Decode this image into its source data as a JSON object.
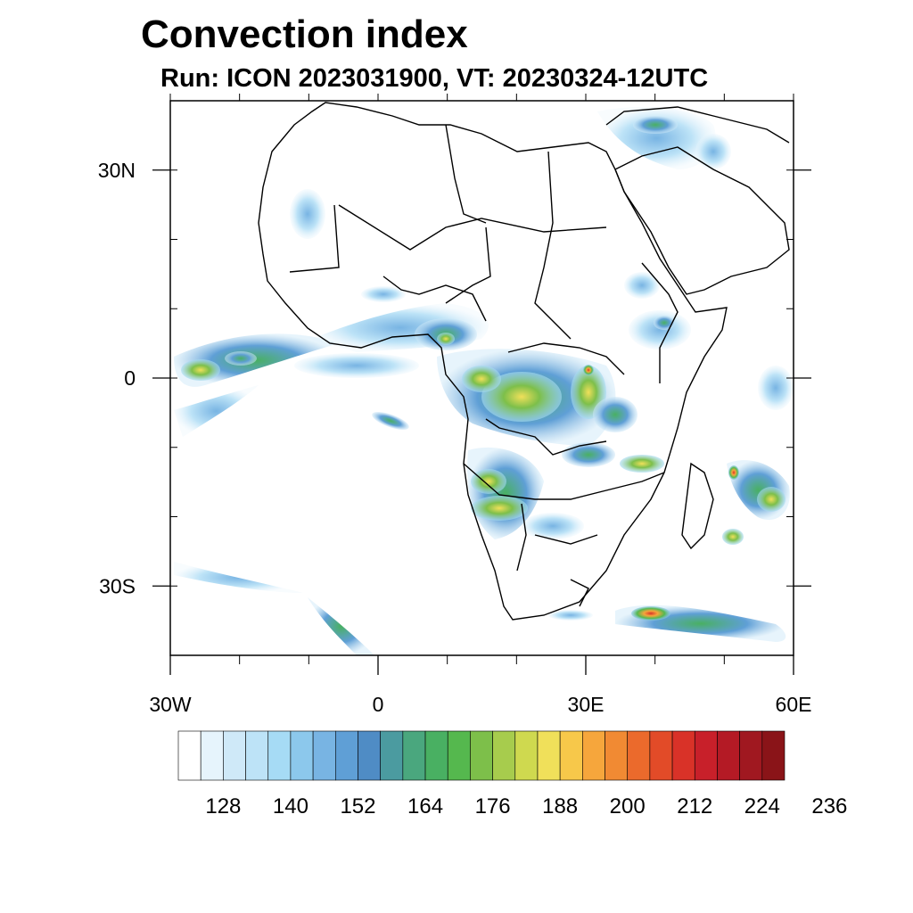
{
  "title": "Convection index",
  "subtitle": "Run: ICON 2023031900,  VT: 20230324-12UTC",
  "map": {
    "lon_range": [
      -30,
      60
    ],
    "lat_range": [
      -40,
      40
    ],
    "lat_ticks": [
      {
        "value": 30,
        "label": "30N"
      },
      {
        "value": 0,
        "label": "0"
      },
      {
        "value": -30,
        "label": "30S"
      }
    ],
    "lon_ticks": [
      {
        "value": -30,
        "label": "30W"
      },
      {
        "value": 0,
        "label": "0"
      },
      {
        "value": 30,
        "label": "30E"
      },
      {
        "value": 60,
        "label": "60E"
      }
    ]
  },
  "colorbar": {
    "labels": [
      "128",
      "140",
      "152",
      "164",
      "176",
      "188",
      "200",
      "212",
      "224",
      "236"
    ],
    "colors": [
      "#ffffff",
      "#e6f4fc",
      "#cfe9f8",
      "#bde3f7",
      "#a6dbf5",
      "#8cc8ec",
      "#78b4e3",
      "#5f9fd6",
      "#4f8cc5",
      "#4b9ba0",
      "#4aa77e",
      "#49b062",
      "#55b84e",
      "#7dbf4a",
      "#a7cc4d",
      "#cfd94f",
      "#f0e05a",
      "#f7c84a",
      "#f6a63c",
      "#f18a33",
      "#eb6a2c",
      "#e24b28",
      "#d93228",
      "#c8202a",
      "#b41a25",
      "#a01820",
      "#8a1418"
    ]
  }
}
